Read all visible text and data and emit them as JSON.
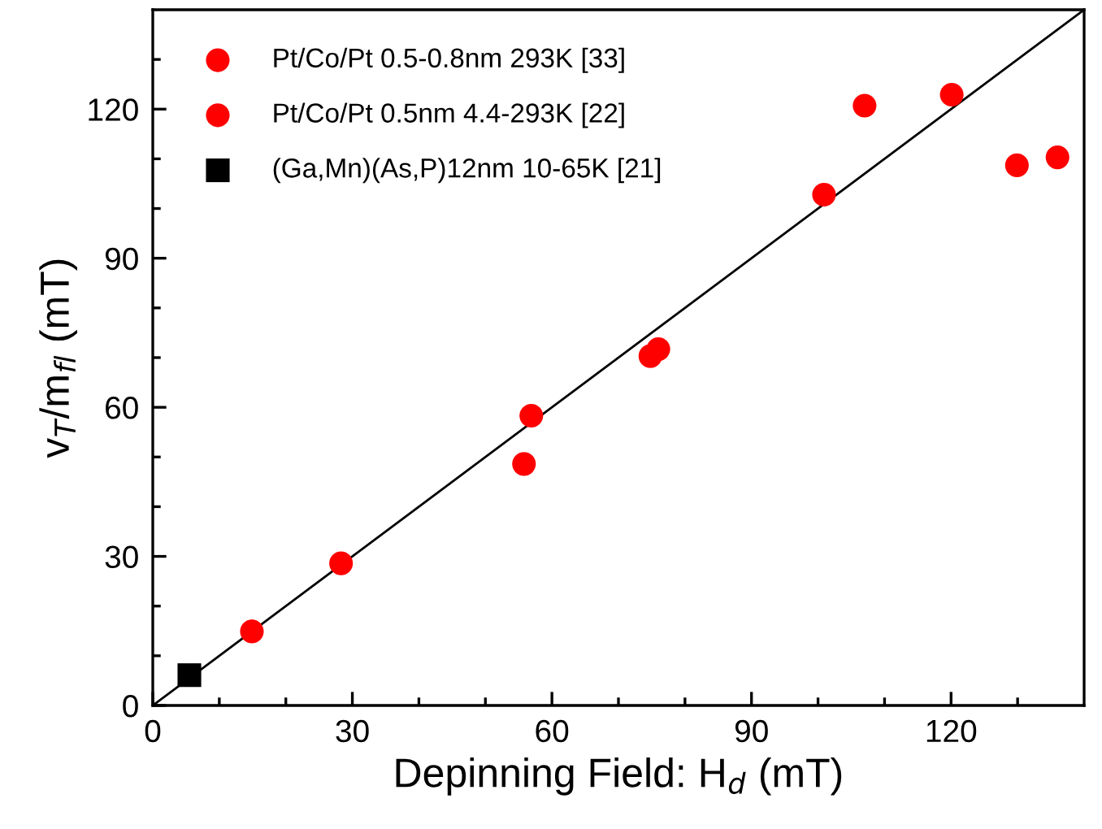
{
  "chart_data": {
    "type": "scatter",
    "xlabel": "Depinning Field: H$_{d}$ (mT)",
    "ylabel": "v$_{T}$/m$_{fl}$ (mT)",
    "series": [
      {
        "name": "Pt/Co/Pt 0.5-0.8nm 293K [33]",
        "color": "#ff0000",
        "marker": "circle",
        "x": [
          14.9,
          28.3,
          55.8
        ],
        "values": [
          14.9,
          28.6,
          48.6
        ]
      },
      {
        "name": "Pt/Co/Pt 0.5nm 4.4-293K [22]",
        "color": "#ff0000",
        "marker": "circle",
        "x": [
          56.9,
          74.8,
          76.0,
          100.9,
          107.0,
          120.1,
          129.9,
          136.0
        ],
        "values": [
          58.3,
          70.3,
          71.7,
          102.8,
          120.7,
          122.9,
          108.7,
          110.3
        ]
      },
      {
        "name": "(Ga,Mn)(As,P)12nm 10-65K [21]",
        "color": "#000000",
        "marker": "square",
        "x": [
          5.5
        ],
        "values": [
          6.1
        ]
      },
      {
        "type": "line",
        "color": "#000000",
        "x": [
          0,
          140
        ],
        "values": [
          0,
          140
        ]
      }
    ],
    "xlim": [
      0,
      140
    ],
    "ylim": [
      0,
      140
    ],
    "xticks": [
      0,
      {
        "value": 10,
        "label": null
      },
      {
        "value": 20,
        "label": null
      },
      30,
      {
        "value": 40,
        "label": null
      },
      {
        "value": 50,
        "label": null
      },
      60,
      {
        "value": 70,
        "label": null
      },
      {
        "value": 80,
        "label": null
      },
      90,
      {
        "value": 100,
        "label": null
      },
      {
        "value": 110,
        "label": null
      },
      120,
      {
        "value": 130,
        "label": null
      }
    ],
    "yticks": [
      0,
      {
        "value": 10,
        "label": null
      },
      {
        "value": 20,
        "label": null
      },
      30,
      {
        "value": 40,
        "label": null
      },
      {
        "value": 50,
        "label": null
      },
      60,
      {
        "value": 70,
        "label": null
      },
      {
        "value": 80,
        "label": null
      },
      90,
      {
        "value": 100,
        "label": null
      },
      {
        "value": 110,
        "label": null
      },
      120,
      {
        "value": 130,
        "label": null
      }
    ],
    "legend": "top left",
    "grid": false
  }
}
